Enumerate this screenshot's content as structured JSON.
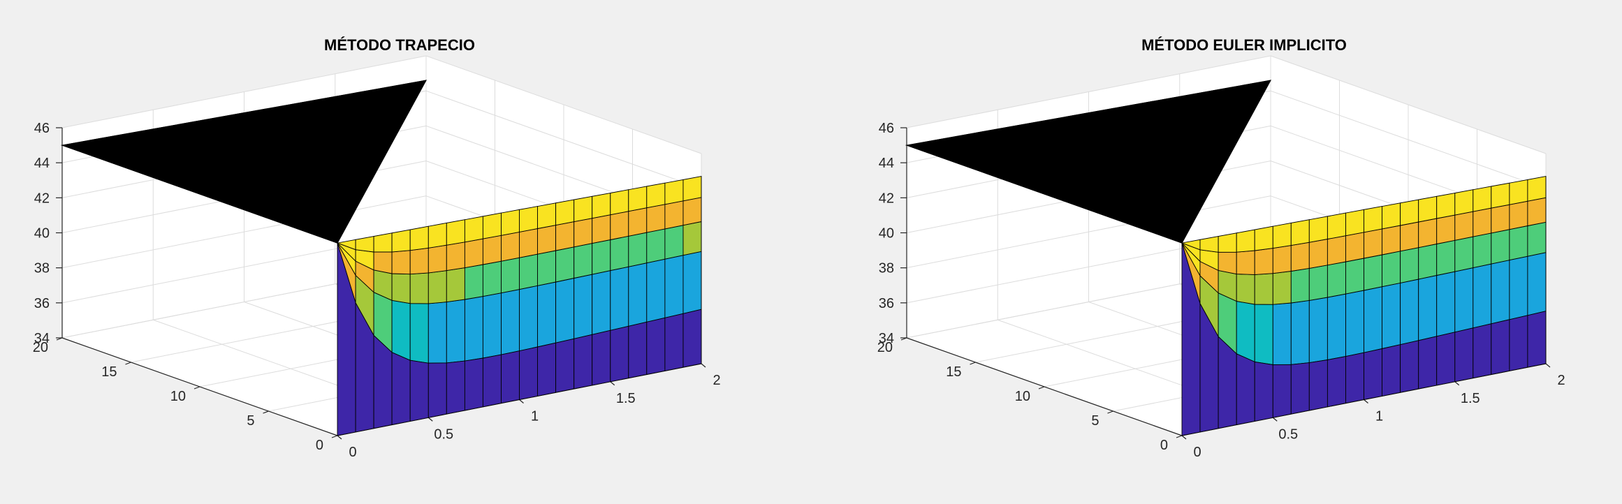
{
  "figure": {
    "background": "#f0f0f0",
    "axes_background": "#ffffff",
    "grid_color": "#dcdcdc",
    "axis_color": "#262626"
  },
  "chart_data": [
    {
      "type": "surface",
      "title": "MÉTODO TRAPECIO",
      "grid": true,
      "x_range": [
        0,
        2
      ],
      "y_range": [
        0,
        20
      ],
      "z_range": [
        34,
        46
      ],
      "x_ticks": [
        "0",
        "0.5",
        "1",
        "1.5",
        "2"
      ],
      "y_ticks": [
        "0",
        "5",
        "10",
        "15",
        "20"
      ],
      "z_ticks": [
        "34",
        "36",
        "38",
        "40",
        "42",
        "44",
        "46"
      ],
      "colormap": [
        "#3e26a8",
        "#4a5ddd",
        "#1aa5dd",
        "#0fbcc2",
        "#4ecd7a",
        "#a5c83a",
        "#f3b430",
        "#f9e321",
        "#000000"
      ],
      "surface": {
        "boundary_temperature": 45,
        "initial_temperature": 35,
        "edge_profile_min": 36.4,
        "edge_profile_end": 37.1,
        "x_samples": 20
      }
    },
    {
      "type": "surface",
      "title": "MÉTODO EULER IMPLICITO",
      "grid": true,
      "x_range": [
        0,
        2
      ],
      "y_range": [
        0,
        20
      ],
      "z_range": [
        34,
        46
      ],
      "x_ticks": [
        "0",
        "0.5",
        "1",
        "1.5",
        "2"
      ],
      "y_ticks": [
        "0",
        "5",
        "10",
        "15",
        "20"
      ],
      "z_ticks": [
        "34",
        "36",
        "38",
        "40",
        "42",
        "44",
        "46"
      ],
      "colormap": [
        "#3e26a8",
        "#4a5ddd",
        "#1aa5dd",
        "#0fbcc2",
        "#4ecd7a",
        "#a5c83a",
        "#f3b430",
        "#f9e321",
        "#000000"
      ],
      "surface": {
        "boundary_temperature": 45,
        "initial_temperature": 35,
        "edge_profile_min": 36.3,
        "edge_profile_end": 37.0,
        "x_samples": 20
      }
    }
  ]
}
